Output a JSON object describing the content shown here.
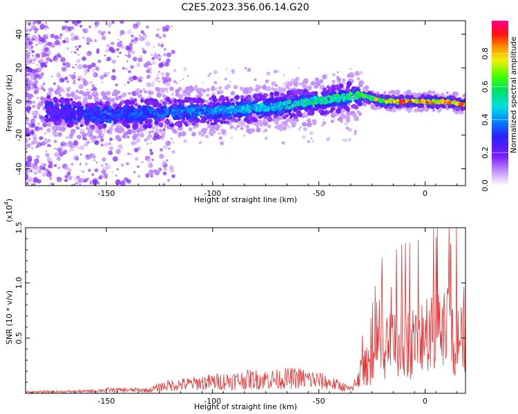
{
  "title": "C2E5.2023.356.06.14.G20",
  "chart_data": [
    {
      "type": "heatmap",
      "xlabel": "Height of straight line (km)",
      "ylabel": "Frequency (Hz)",
      "xlim": [
        -188,
        19
      ],
      "ylim": [
        -50,
        48
      ],
      "x_ticks": [
        -150,
        -100,
        -50,
        0
      ],
      "y_ticks": [
        -40,
        -20,
        0,
        20,
        40
      ],
      "x_tick_labels": [
        "-150",
        "-100",
        "-50",
        "0"
      ],
      "y_tick_labels": [
        "-40",
        "-20",
        "0",
        "20",
        "40"
      ],
      "colorbar": {
        "label": "Normalized spectral amplitude",
        "range": [
          0,
          1
        ],
        "ticks": [
          0.0,
          0.2,
          0.4,
          0.6,
          0.8
        ],
        "tick_labels": [
          "0.0",
          "0.2",
          "0.4",
          "0.6",
          "0.8"
        ],
        "colormap": "rainbow (white-violet-blue-cyan-green-yellow-orange-red-magenta)"
      },
      "ridge": {
        "description_points_x": [
          -178,
          -165,
          -150,
          -130,
          -110,
          -90,
          -70,
          -55,
          -40,
          -30,
          -20,
          -10,
          0,
          10,
          19
        ],
        "frequency_hz": [
          -5,
          -7,
          -8,
          -7,
          -6,
          -5,
          -3,
          0,
          2,
          4,
          0,
          0,
          0,
          0,
          -2
        ],
        "amplitude": [
          0.2,
          0.3,
          0.35,
          0.35,
          0.4,
          0.45,
          0.5,
          0.55,
          0.6,
          0.6,
          0.8,
          0.9,
          0.85,
          0.9,
          0.8
        ]
      },
      "grid": false
    },
    {
      "type": "line",
      "xlabel": "Height of straight line (km)",
      "ylabel": "SNR (10 * v/v)",
      "y_multiplier_label": "(x10",
      "y_multiplier_exp": "4",
      "y_multiplier_close": ")",
      "xlim": [
        -188,
        19
      ],
      "ylim": [
        0,
        1.5
      ],
      "x_ticks": [
        -150,
        -100,
        -50,
        0
      ],
      "y_ticks": [
        0.5,
        1.0,
        1.5
      ],
      "x_tick_labels": [
        "-150",
        "-100",
        "-50",
        "0"
      ],
      "y_tick_labels": [
        "0.5",
        "1.0",
        "1.5"
      ],
      "series": [
        {
          "color": "#e83030",
          "envelope_x": [
            -188,
            -160,
            -150,
            -130,
            -122,
            -110,
            -100,
            -90,
            -80,
            -70,
            -60,
            -50,
            -40,
            -35,
            -30,
            -25,
            -20,
            -15,
            -10,
            -5,
            0,
            5,
            10,
            15,
            19
          ],
          "envelope_y": [
            0.02,
            0.03,
            0.05,
            0.05,
            0.12,
            0.15,
            0.18,
            0.2,
            0.22,
            0.22,
            0.24,
            0.2,
            0.12,
            0.06,
            0.35,
            0.5,
            0.7,
            0.75,
            0.8,
            0.8,
            0.85,
            0.9,
            1.0,
            0.95,
            1.05
          ]
        }
      ],
      "grid": false
    }
  ]
}
